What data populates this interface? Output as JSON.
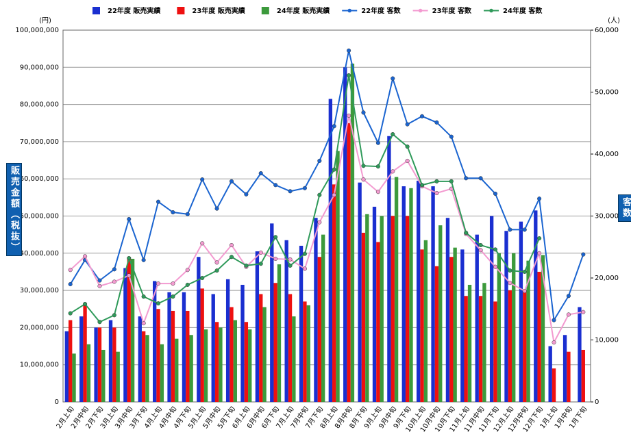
{
  "chart_data": {
    "type": "combo",
    "y_label": "販売金額（税抜）",
    "y2_label": "客数",
    "y_unit": "(円)",
    "y2_unit": "(人)",
    "categories": [
      "2月上旬",
      "2月中旬",
      "2月下旬",
      "3月上旬",
      "3月中旬",
      "3月下旬",
      "4月上旬",
      "4月中旬",
      "4月下旬",
      "5月上旬",
      "5月中旬",
      "5月下旬",
      "6月上旬",
      "6月中旬",
      "6月下旬",
      "7月上旬",
      "7月中旬",
      "7月下旬",
      "8月上旬",
      "8月中旬",
      "8月下旬",
      "9月上旬",
      "9月中旬",
      "9月下旬",
      "10月上旬",
      "10月中旬",
      "10月下旬",
      "11月上旬",
      "11月中旬",
      "11月下旬",
      "12月上旬",
      "12月中旬",
      "12月下旬",
      "1月上旬",
      "1月中旬",
      "1月下旬"
    ],
    "series": [
      {
        "name": "22年度 販売実績",
        "type": "bar",
        "color": "#1a2fd0",
        "values": [
          19000000,
          23000000,
          20000000,
          22000000,
          36000000,
          23000000,
          32500000,
          29500000,
          29500000,
          39000000,
          29000000,
          33000000,
          31500000,
          40500000,
          48000000,
          43500000,
          42000000,
          49500000,
          81500000,
          90000000,
          59000000,
          52500000,
          71500000,
          58000000,
          59500000,
          58000000,
          49500000,
          41000000,
          45000000,
          50000000,
          46000000,
          48500000,
          51500000,
          15000000,
          18000000,
          25500000
        ]
      },
      {
        "name": "23年度 販売実績",
        "type": "bar",
        "color": "#ee1010",
        "values": [
          22000000,
          26000000,
          20000000,
          20000000,
          39000000,
          19000000,
          25000000,
          24500000,
          24500000,
          30500000,
          21500000,
          25500000,
          21500000,
          29000000,
          32000000,
          29000000,
          27000000,
          39000000,
          58500000,
          75000000,
          45500000,
          43000000,
          50000000,
          50000000,
          41000000,
          36500000,
          39000000,
          28500000,
          28500000,
          27000000,
          30000000,
          30000000,
          35000000,
          9000000,
          13500000,
          14000000
        ]
      },
      {
        "name": "24年度 販売実績",
        "type": "bar",
        "color": "#3c9a3c",
        "values": [
          13000000,
          15500000,
          14000000,
          13500000,
          38500000,
          18000000,
          15500000,
          17000000,
          18000000,
          19500000,
          20000000,
          22000000,
          19500000,
          25500000,
          37000000,
          23000000,
          26000000,
          45000000,
          67500000,
          91000000,
          50500000,
          50000000,
          60500000,
          57500000,
          43500000,
          47500000,
          41500000,
          31500000,
          32000000,
          40000000,
          40000000,
          38000000,
          39500000,
          null,
          null,
          null
        ]
      },
      {
        "name": "22年度 客数",
        "type": "line",
        "axis": "y2",
        "color": "#1a64d0",
        "values": [
          19000,
          22900,
          19600,
          21400,
          29500,
          22900,
          32300,
          30600,
          30300,
          35900,
          31200,
          35600,
          33500,
          36900,
          35000,
          34000,
          34500,
          38900,
          44500,
          56700,
          46700,
          41800,
          52200,
          44800,
          46100,
          45100,
          42800,
          36100,
          36100,
          33600,
          27800,
          27800,
          32800,
          13200,
          17100,
          23800
        ]
      },
      {
        "name": "23年度 客数",
        "type": "line",
        "axis": "y2",
        "color": "#f39ad0",
        "values": [
          21300,
          23500,
          18700,
          19400,
          20400,
          12700,
          19100,
          19100,
          21300,
          25600,
          22500,
          25300,
          21800,
          24100,
          23100,
          23000,
          21500,
          29000,
          33400,
          46200,
          35900,
          33900,
          37200,
          38900,
          34800,
          33700,
          34400,
          27100,
          24500,
          21800,
          19200,
          17900,
          24000,
          9600,
          14100,
          14500
        ]
      },
      {
        "name": "24年度 客数",
        "type": "line",
        "axis": "y2",
        "color": "#2f9a5a",
        "values": [
          14300,
          15800,
          12900,
          14000,
          23200,
          17000,
          15900,
          17000,
          18900,
          20000,
          21200,
          23400,
          22000,
          22300,
          26600,
          22000,
          23900,
          33400,
          37500,
          52700,
          38100,
          38000,
          43200,
          41200,
          35000,
          35600,
          35600,
          27300,
          25300,
          24600,
          21200,
          21000,
          26400,
          null,
          null,
          null
        ]
      }
    ],
    "ylim": [
      0,
      100000000
    ],
    "yticks": [
      0,
      {
        "value": 10000000,
        "label": "10,000,000"
      },
      {
        "value": 20000000,
        "label": "20,000,000"
      },
      {
        "value": 30000000,
        "label": "30,000,000"
      },
      {
        "value": 40000000,
        "label": "40,000,000"
      },
      {
        "value": 50000000,
        "label": "50,000,000"
      },
      {
        "value": 60000000,
        "label": "60,000,000"
      },
      {
        "value": 70000000,
        "label": "70,000,000"
      },
      {
        "value": 80000000,
        "label": "80,000,000"
      },
      {
        "value": 90000000,
        "label": "90,000,000"
      },
      {
        "value": 100000000,
        "label": "100,000,000"
      }
    ],
    "y2lim": [
      0,
      60000
    ],
    "y2ticks": [
      0,
      {
        "value": 10000,
        "label": "10,000"
      },
      {
        "value": 20000,
        "label": "20,000"
      },
      {
        "value": 30000,
        "label": "30,000"
      },
      {
        "value": 40000,
        "label": "40,000"
      },
      {
        "value": 50000,
        "label": "50,000"
      },
      {
        "value": 60000,
        "label": "60,000"
      }
    ],
    "grid": true,
    "legend": "top"
  }
}
